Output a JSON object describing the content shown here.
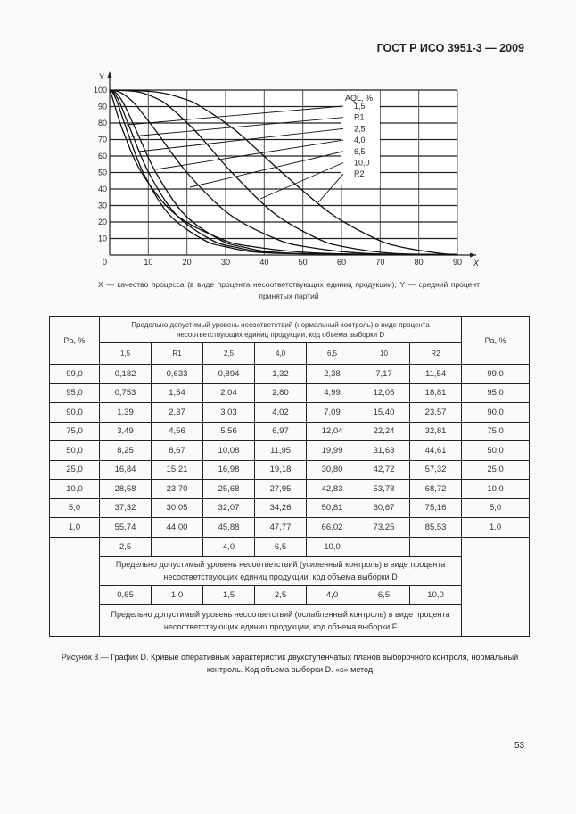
{
  "header": {
    "standard": "ГОСТ Р ИСО 3951-3 — 2009"
  },
  "chart_data": {
    "type": "line",
    "xlabel": "X",
    "ylabel": "Y",
    "xlim": [
      0,
      90
    ],
    "ylim": [
      0,
      100
    ],
    "xticks": [
      "0",
      "10",
      "20",
      "30",
      "40",
      "50",
      "60",
      "70",
      "80",
      "90"
    ],
    "yticks": [
      "10",
      "20",
      "30",
      "40",
      "50",
      "60",
      "70",
      "80",
      "90",
      "100"
    ],
    "grid": true,
    "legend_title": "AQL, %",
    "legend_placement": "top-right",
    "y_values": [
      99,
      95,
      90,
      75,
      50,
      25,
      10,
      5,
      1
    ],
    "series": [
      {
        "name": "1,5",
        "x": [
          0.182,
          0.753,
          1.39,
          3.49,
          8.25,
          16.84,
          28.58,
          37.32,
          55.74
        ]
      },
      {
        "name": "R1",
        "x": [
          0.633,
          1.54,
          2.37,
          4.56,
          8.67,
          15.21,
          23.7,
          30.05,
          44.0
        ]
      },
      {
        "name": "2,5",
        "x": [
          0.894,
          2.04,
          3.03,
          5.56,
          10.08,
          16.98,
          25.68,
          32.07,
          45.88
        ]
      },
      {
        "name": "4,0",
        "x": [
          1.32,
          2.8,
          4.02,
          6.97,
          11.95,
          19.18,
          27.95,
          34.26,
          47.77
        ]
      },
      {
        "name": "6,5",
        "x": [
          2.38,
          4.99,
          7.09,
          12.04,
          19.99,
          30.8,
          42.83,
          50.81,
          66.02
        ]
      },
      {
        "name": "10,0",
        "x": [
          7.17,
          12.05,
          15.4,
          22.24,
          31.63,
          42.72,
          53.78,
          60.67,
          73.25
        ]
      },
      {
        "name": "R2",
        "x": [
          11.54,
          18.81,
          23.57,
          32.81,
          44.61,
          57.32,
          68.72,
          75.16,
          85.53
        ]
      }
    ]
  },
  "axis_caption": "X — качество процесса (в виде процента несоответствующих единиц продукции); Y — средний процент принятых партий",
  "table": {
    "pa_left": "Pa, %",
    "pa_right": "Pa, %",
    "normal_header": "Предельно допустимый уровень несоответствий (нормальный контроль) в виде процента несоответствующих единиц продукции, код объема выборки D",
    "columns": [
      "1,5",
      "R1",
      "2,5",
      "4,0",
      "6,5",
      "10",
      "R2"
    ],
    "rows": [
      [
        "99,0",
        "0,182",
        "0,633",
        "0,894",
        "1,32",
        "2,38",
        "7,17",
        "11,54",
        "99,0"
      ],
      [
        "95,0",
        "0,753",
        "1,54",
        "2,04",
        "2,80",
        "4,99",
        "12,05",
        "18,81",
        "95,0"
      ],
      [
        "90,0",
        "1,39",
        "2,37",
        "3,03",
        "4,02",
        "7,09",
        "15,40",
        "23,57",
        "90,0"
      ],
      [
        "75,0",
        "3,49",
        "4,56",
        "5,56",
        "6,97",
        "12,04",
        "22,24",
        "32,81",
        "75,0"
      ],
      [
        "50,0",
        "8,25",
        "8,67",
        "10,08",
        "11,95",
        "19,99",
        "31,63",
        "44,61",
        "50,0"
      ],
      [
        "25,0",
        "16,84",
        "15,21",
        "16,98",
        "19,18",
        "30,80",
        "42,72",
        "57,32",
        "25,0"
      ],
      [
        "10,0",
        "28,58",
        "23,70",
        "25,68",
        "27,95",
        "42,83",
        "53,78",
        "68,72",
        "10,0"
      ],
      [
        "5,0",
        "37,32",
        "30,05",
        "32,07",
        "34,26",
        "50,81",
        "60,67",
        "75,16",
        "5,0"
      ],
      [
        "1,0",
        "55,74",
        "44,00",
        "45,88",
        "47,77",
        "66,02",
        "73,25",
        "85,53",
        "1,0"
      ]
    ],
    "tightened_values": [
      "2,5",
      "",
      "4,0",
      "6,5",
      "10,0",
      "",
      ""
    ],
    "tightened_header": "Предельно допустимый уровень несоответствий (усиленный контроль) в виде процента несоответствующих единиц продукции, код объема выборки D",
    "reduced_values": [
      "0,65",
      "1,0",
      "1,5",
      "2,5",
      "4,0",
      "6,5",
      "10,0"
    ],
    "reduced_header": "Предельно допустимый уровень несоответствий (ослабленный контроль) в виде процента несоответствующих единиц продукции, код объема выборки F"
  },
  "caption": "Рисунок 3 — График D. Кривые оперативных характеристик двухступенчатых планов выборочного контроля, нормальный контроль. Код объема выборки D. «s» метод",
  "page_number": "53"
}
